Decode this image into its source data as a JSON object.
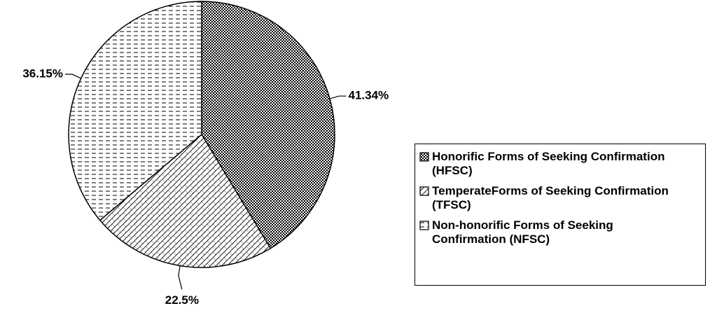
{
  "chart_data": {
    "type": "pie",
    "categories": [
      "Honorific Forms of Seeking Confirmation (HFSC)",
      "TemperateForms of Seeking Confirmation (TFSC)",
      "Non-honorific Forms of Seeking Confirmation (NFSC)"
    ],
    "values": [
      41.34,
      22.5,
      36.15
    ],
    "value_labels": [
      "41.34%",
      "22.5%",
      "36.15%"
    ],
    "patterns": [
      "checker",
      "crosshatch",
      "dashes"
    ],
    "legend": "right"
  }
}
